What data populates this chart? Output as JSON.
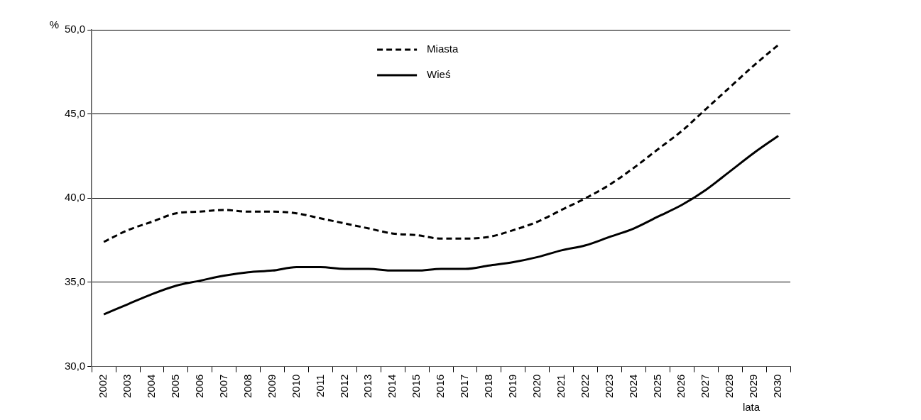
{
  "chart_data": {
    "type": "line",
    "xlabel": "lata",
    "ylabel": "%",
    "categories": [
      "2002",
      "2003",
      "2004",
      "2005",
      "2006",
      "2007",
      "2008",
      "2009",
      "2010",
      "2011",
      "2012",
      "2013",
      "2014",
      "2015",
      "2016",
      "2017",
      "2018",
      "2019",
      "2020",
      "2021",
      "2022",
      "2023",
      "2024",
      "2025",
      "2026",
      "2027",
      "2028",
      "2029",
      "2030"
    ],
    "series": [
      {
        "name": "Miasta",
        "color": "#000000",
        "line_style": "dashed",
        "values": [
          37.4,
          38.1,
          38.6,
          39.1,
          39.2,
          39.3,
          39.2,
          39.2,
          39.1,
          38.8,
          38.5,
          38.2,
          37.9,
          37.8,
          37.6,
          37.6,
          37.7,
          38.1,
          38.6,
          39.3,
          40.0,
          40.8,
          41.8,
          42.9,
          44.0,
          45.3,
          46.6,
          47.9,
          49.1
        ]
      },
      {
        "name": "Wieś",
        "color": "#000000",
        "line_style": "solid",
        "values": [
          33.1,
          33.7,
          34.3,
          34.8,
          35.1,
          35.4,
          35.6,
          35.7,
          35.9,
          35.9,
          35.8,
          35.8,
          35.7,
          35.7,
          35.8,
          35.8,
          36.0,
          36.2,
          36.5,
          36.9,
          37.2,
          37.7,
          38.2,
          38.9,
          39.6,
          40.5,
          41.6,
          42.7,
          43.7
        ]
      }
    ],
    "ylim": [
      30,
      50
    ],
    "yticks": [
      {
        "value": 30,
        "label": "30,0"
      },
      {
        "value": 35,
        "label": "35,0"
      },
      {
        "value": 40,
        "label": "40,0"
      },
      {
        "value": 45,
        "label": "45,0"
      },
      {
        "value": 50,
        "label": "50,0"
      }
    ],
    "grid": "y",
    "legend": "top",
    "marker": "none"
  }
}
